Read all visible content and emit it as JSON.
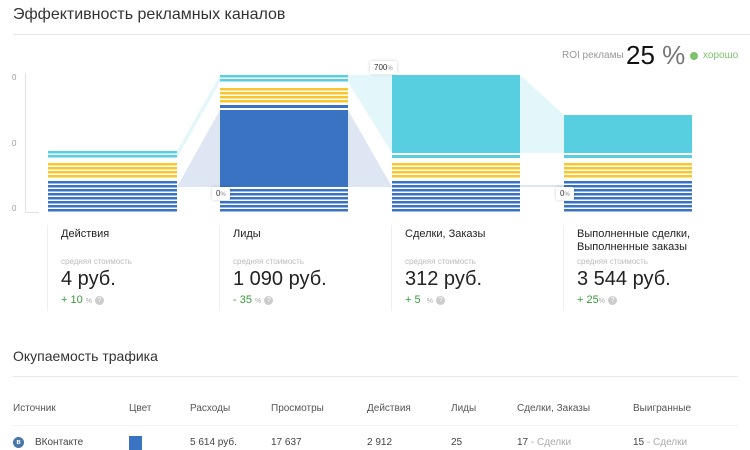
{
  "header": {
    "title": "Эффективность рекламных каналов"
  },
  "roi": {
    "label": "ROI рекламы",
    "value": "25",
    "unit": "%",
    "status": "хорошо",
    "status_color": "#7dc36b"
  },
  "y_axis_labels": [
    "0",
    "0",
    "0"
  ],
  "colors": {
    "blue": "#3a73c2",
    "yellow": "#f7c72d",
    "cyan": "#57cfe0"
  },
  "transitions": [
    {
      "value": "0",
      "unit": "%"
    },
    {
      "value": "700",
      "unit": "%"
    },
    {
      "value": "0",
      "unit": "%"
    }
  ],
  "stages": [
    {
      "title": "Действия",
      "cost_label": "средняя стоимость",
      "cost": "4 руб.",
      "change": "+ 10",
      "unit": "%"
    },
    {
      "title": "Лиды",
      "cost_label": "средняя стоимость",
      "cost": "1 090 руб.",
      "change": "- 35",
      "unit": "%"
    },
    {
      "title": "Сделки, Заказы",
      "cost_label": "средняя стоимость",
      "cost": "312 руб.",
      "change": "+ 5",
      "unit": "%"
    },
    {
      "title": "Выполненные сделки, Выполненные заказы",
      "cost_label": "средняя стоимость",
      "cost": "3 544 руб.",
      "change": "+ 25",
      "unit": "%"
    }
  ],
  "traffic": {
    "title": "Окупаемость трафика",
    "columns": [
      "Источник",
      "Цвет",
      "Расходы",
      "Просмотры",
      "Действия",
      "Лиды",
      "Сделки, Заказы",
      "Выигранные"
    ],
    "rows": [
      {
        "source": "ВКонтакте",
        "color": "#3a73c2",
        "spend": "5 614 руб.",
        "views": "17 637",
        "actions": "2 912",
        "leads": "25",
        "deals": "17",
        "deals_note": "- Сделки",
        "won": "15",
        "won_note": "- Сделки"
      }
    ]
  }
}
